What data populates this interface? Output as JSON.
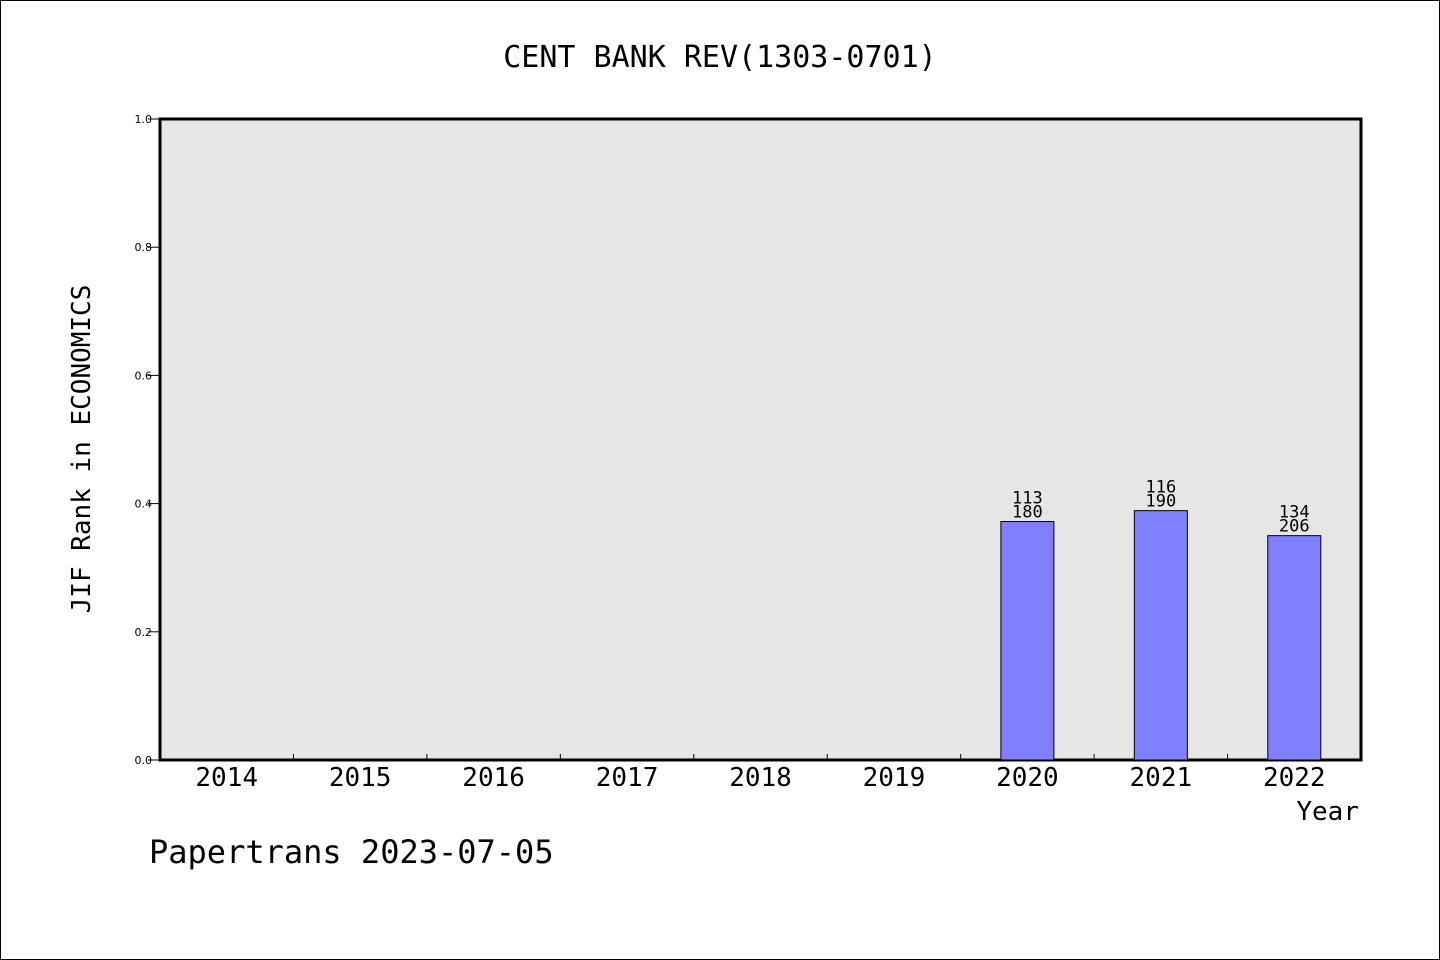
{
  "chart_data": {
    "type": "bar",
    "title": "CENT BANK REV(1303-0701)",
    "xlabel": "Year",
    "ylabel": "JIF Rank in ECONOMICS",
    "ylim": [
      0,
      1.0
    ],
    "yticks": [
      "0.0",
      "0.2",
      "0.4",
      "0.6",
      "0.8",
      "1.0"
    ],
    "categories": [
      "2014",
      "2015",
      "2016",
      "2017",
      "2018",
      "2019",
      "2020",
      "2021",
      "2022"
    ],
    "values": [
      null,
      null,
      null,
      null,
      null,
      null,
      0.372,
      0.389,
      0.35
    ],
    "bar_labels": [
      null,
      null,
      null,
      null,
      null,
      null,
      {
        "rank": "113",
        "total": "180"
      },
      {
        "rank": "116",
        "total": "190"
      },
      {
        "rank": "134",
        "total": "206"
      }
    ],
    "grid": false,
    "colors": {
      "bar": "#8080ff",
      "plot_bg": "#e6e6e6"
    }
  },
  "footer": "Papertrans 2023-07-05"
}
